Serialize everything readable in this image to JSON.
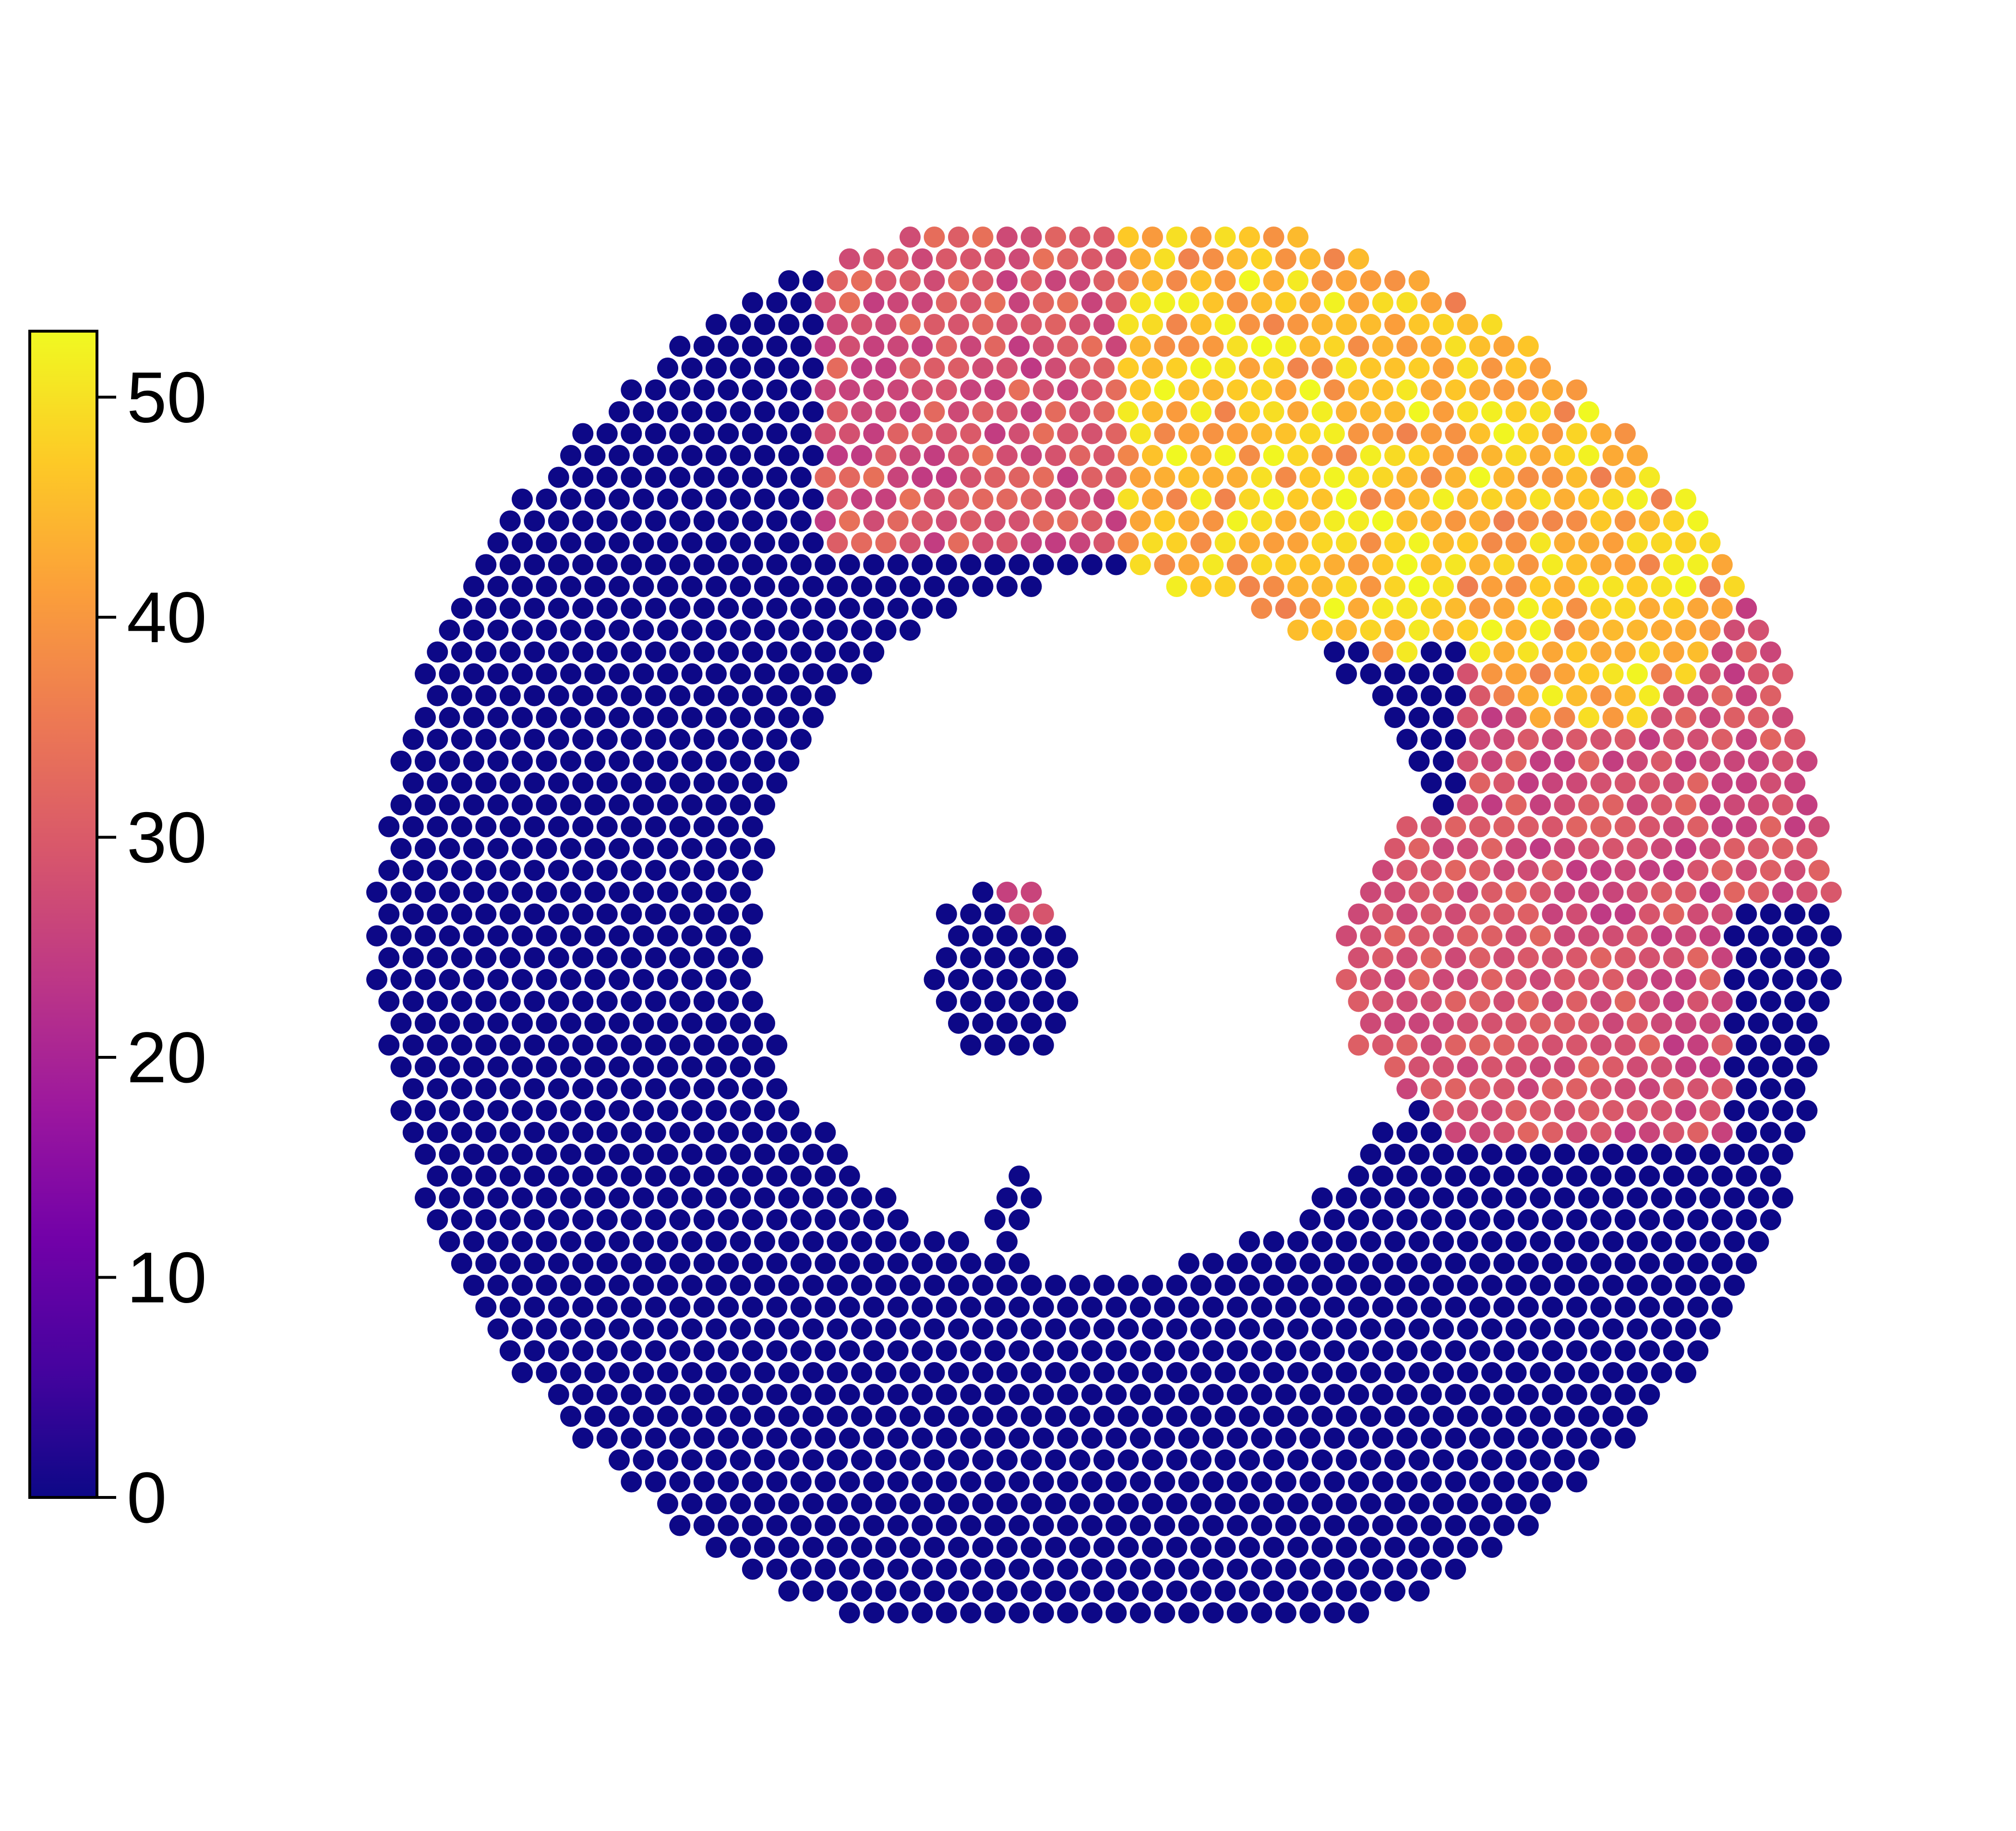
{
  "chart_data": {
    "type": "scatter",
    "title": "",
    "xlabel": "",
    "ylabel": "",
    "grid": false,
    "colormap": "plasma",
    "colormap_stops": [
      "#0d0887",
      "#46039f",
      "#7201a8",
      "#9c179e",
      "#bd3786",
      "#d8576b",
      "#ed7953",
      "#fb9f3a",
      "#fdca26",
      "#f0f921"
    ],
    "marker_color_for_zero": "#0d0887",
    "colorbar": {
      "orientation": "vertical",
      "position": "left",
      "range": [
        0,
        53
      ],
      "ticks": [
        0,
        10,
        20,
        30,
        40,
        50
      ],
      "tick_labels": [
        "0",
        "10",
        "20",
        "30",
        "40",
        "50"
      ]
    },
    "lattice": {
      "columns": 68,
      "rows": 64,
      "note": "hexagonal spot lattice (spatial transcriptomics style); rows alternate in offset",
      "x_range": [
        0,
        67
      ],
      "y_range": [
        0,
        63
      ]
    },
    "regions": [
      {
        "name": "background",
        "value": 0
      },
      {
        "name": "upper-middle",
        "value_range": [
          24,
          34
        ]
      },
      {
        "name": "upper-right-high",
        "value_range": [
          36,
          53
        ]
      },
      {
        "name": "right-band",
        "value_range": [
          24,
          32
        ]
      },
      {
        "name": "center-small-cluster",
        "value_range": [
          0,
          30
        ]
      }
    ]
  }
}
